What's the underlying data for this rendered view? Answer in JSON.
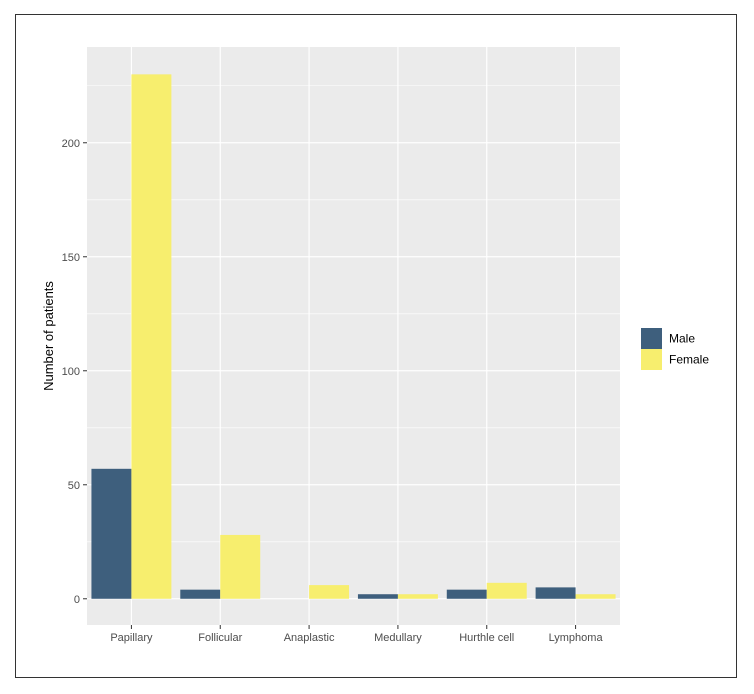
{
  "chart_data": {
    "type": "bar",
    "title": "",
    "xlabel": "",
    "ylabel": "Number of patients",
    "categories": [
      "Papillary",
      "Follicular",
      "Anaplastic",
      "Medullary",
      "Hurthle cell",
      "Lymphoma"
    ],
    "series": [
      {
        "name": "Male",
        "color": "#3e5f7d",
        "values": [
          57,
          4,
          0,
          2,
          4,
          5
        ]
      },
      {
        "name": "Female",
        "color": "#f7ee6e",
        "values": [
          230,
          28,
          6,
          2,
          7,
          2
        ]
      }
    ],
    "ylim": [
      -11.5,
      242
    ],
    "yticks": [
      0,
      50,
      100,
      150,
      200
    ],
    "grid": true,
    "legend_position": "right",
    "panel_color": "#ebebeb",
    "grid_color": "#ffffff"
  }
}
